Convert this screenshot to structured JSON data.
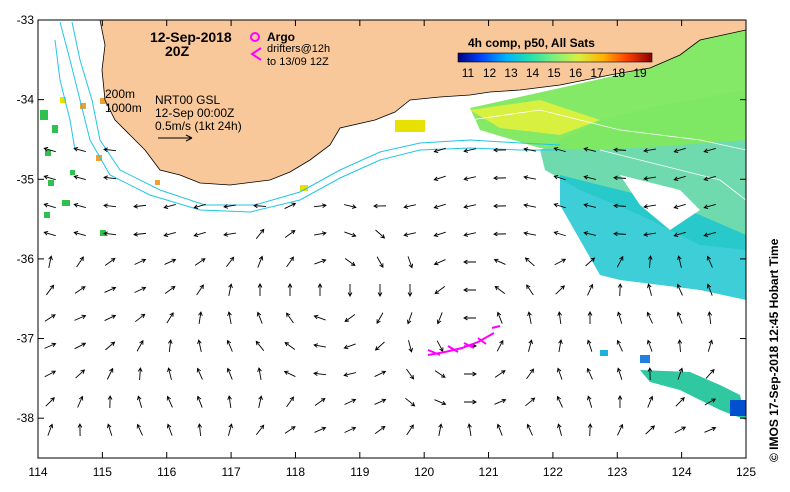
{
  "map": {
    "date_title": "12-Sep-2018",
    "time_title": "20Z",
    "argo_label": "Argo",
    "drifters_label": "drifters@12h",
    "drifters_range": "to 13/09 12Z",
    "composite_label": "4h comp, p50, All Sats",
    "isobath_200": "200m",
    "isobath_1000": "1000m",
    "model_label": "NRT00 GSL",
    "model_time": "12-Sep 00:00Z",
    "vector_scale": "0.5m/s (1kt 24h)",
    "credit": "© IMOS 17-Sep-2018 12:45 Hobart Time",
    "colorbar_ticks": [
      "11",
      "12",
      "13",
      "14",
      "15",
      "16",
      "17",
      "18",
      "19"
    ],
    "x_ticks": [
      "114",
      "115",
      "116",
      "117",
      "118",
      "119",
      "120",
      "121",
      "122",
      "123",
      "124",
      "125"
    ],
    "y_ticks": [
      "-33",
      "-34",
      "-35",
      "-36",
      "-37",
      "-38"
    ],
    "lon_range": [
      114,
      125
    ],
    "lat_range": [
      -38.5,
      -33
    ],
    "colors": {
      "land": "#f8c89a",
      "current_contour": "#22c6e6",
      "drifter": "#ff00ff",
      "sst_cold": "#000080",
      "sst_warm": "#8b0000"
    }
  }
}
